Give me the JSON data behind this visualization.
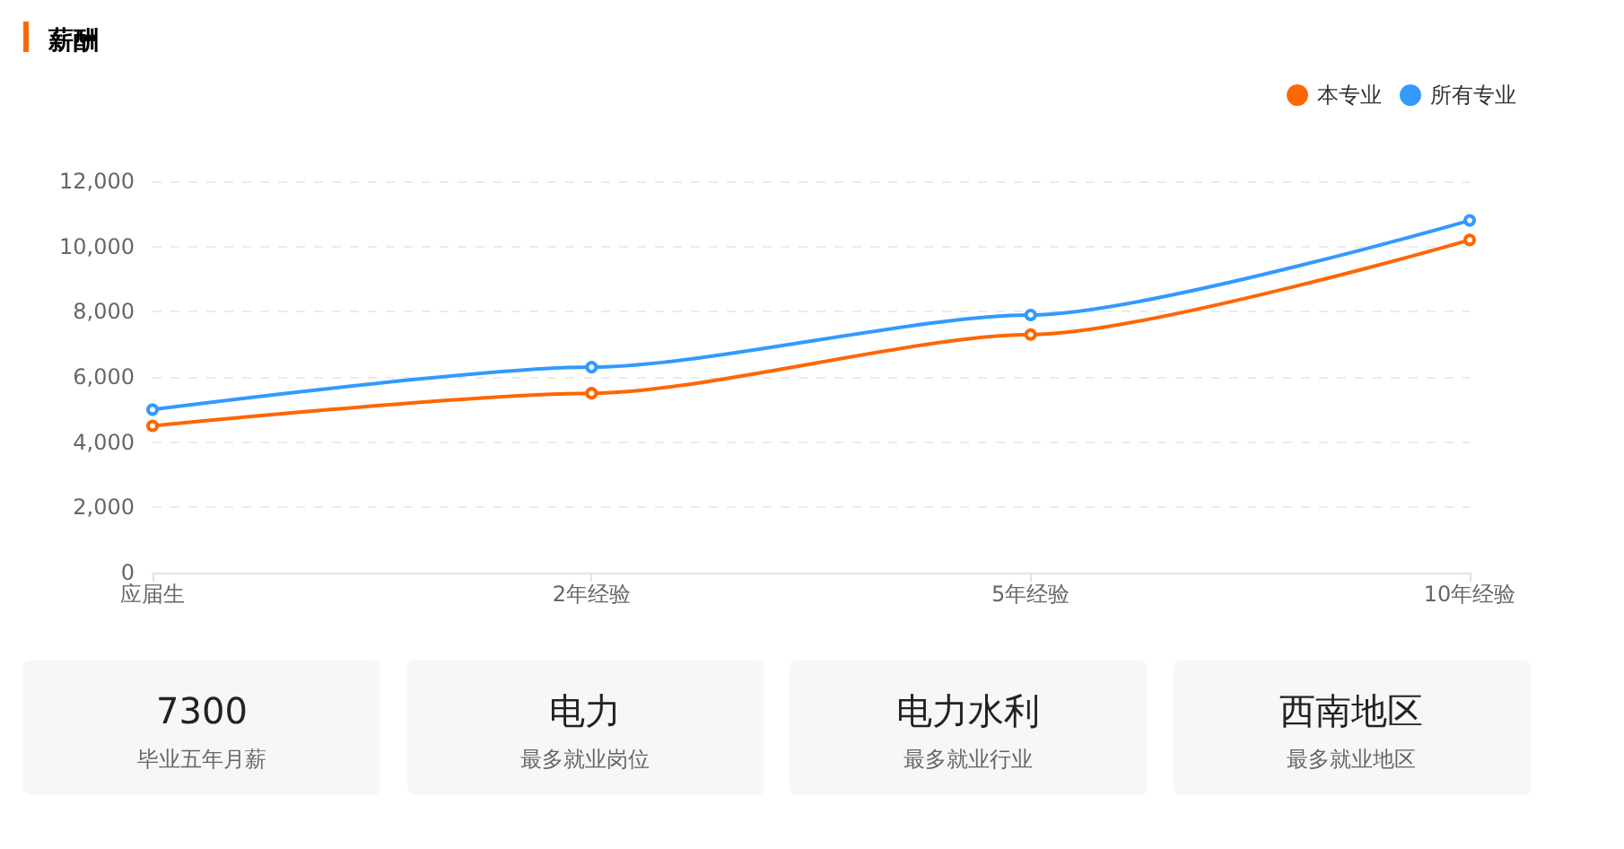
{
  "chart_data": [
    {
      "type": "line",
      "title": "薪酬",
      "categories": [
        "应届生",
        "2年经验",
        "5年经验",
        "10年经验"
      ],
      "series": [
        {
          "name": "本专业",
          "color": "#ff6600",
          "values": [
            4500,
            5500,
            7300,
            10200
          ]
        },
        {
          "name": "所有专业",
          "color": "#3399ff",
          "values": [
            5000,
            6300,
            7900,
            10800
          ]
        }
      ],
      "ylim": [
        0,
        12000
      ],
      "yticks": [
        0,
        {
          "value": 2000,
          "label": "2,000"
        },
        {
          "value": 4000,
          "label": "4,000"
        },
        {
          "value": 6000,
          "label": "6,000"
        },
        {
          "value": 8000,
          "label": "8,000"
        },
        {
          "value": 10000,
          "label": "10,000"
        },
        {
          "value": 12000,
          "label": "12,000"
        }
      ],
      "grid": "y",
      "legend": "top right",
      "marker": "circle",
      "line_style": "solid"
    },
    {
      "type": "other",
      "title": "7300",
      "subtitle": "毕业五年月薪"
    },
    {
      "type": "other",
      "title": "电力",
      "subtitle": "最多就业岗位"
    },
    {
      "type": "other",
      "title": "电力水利",
      "subtitle": "最多就业行业"
    },
    {
      "type": "other",
      "title": "西南地区",
      "subtitle": "最多就业地区"
    }
  ]
}
